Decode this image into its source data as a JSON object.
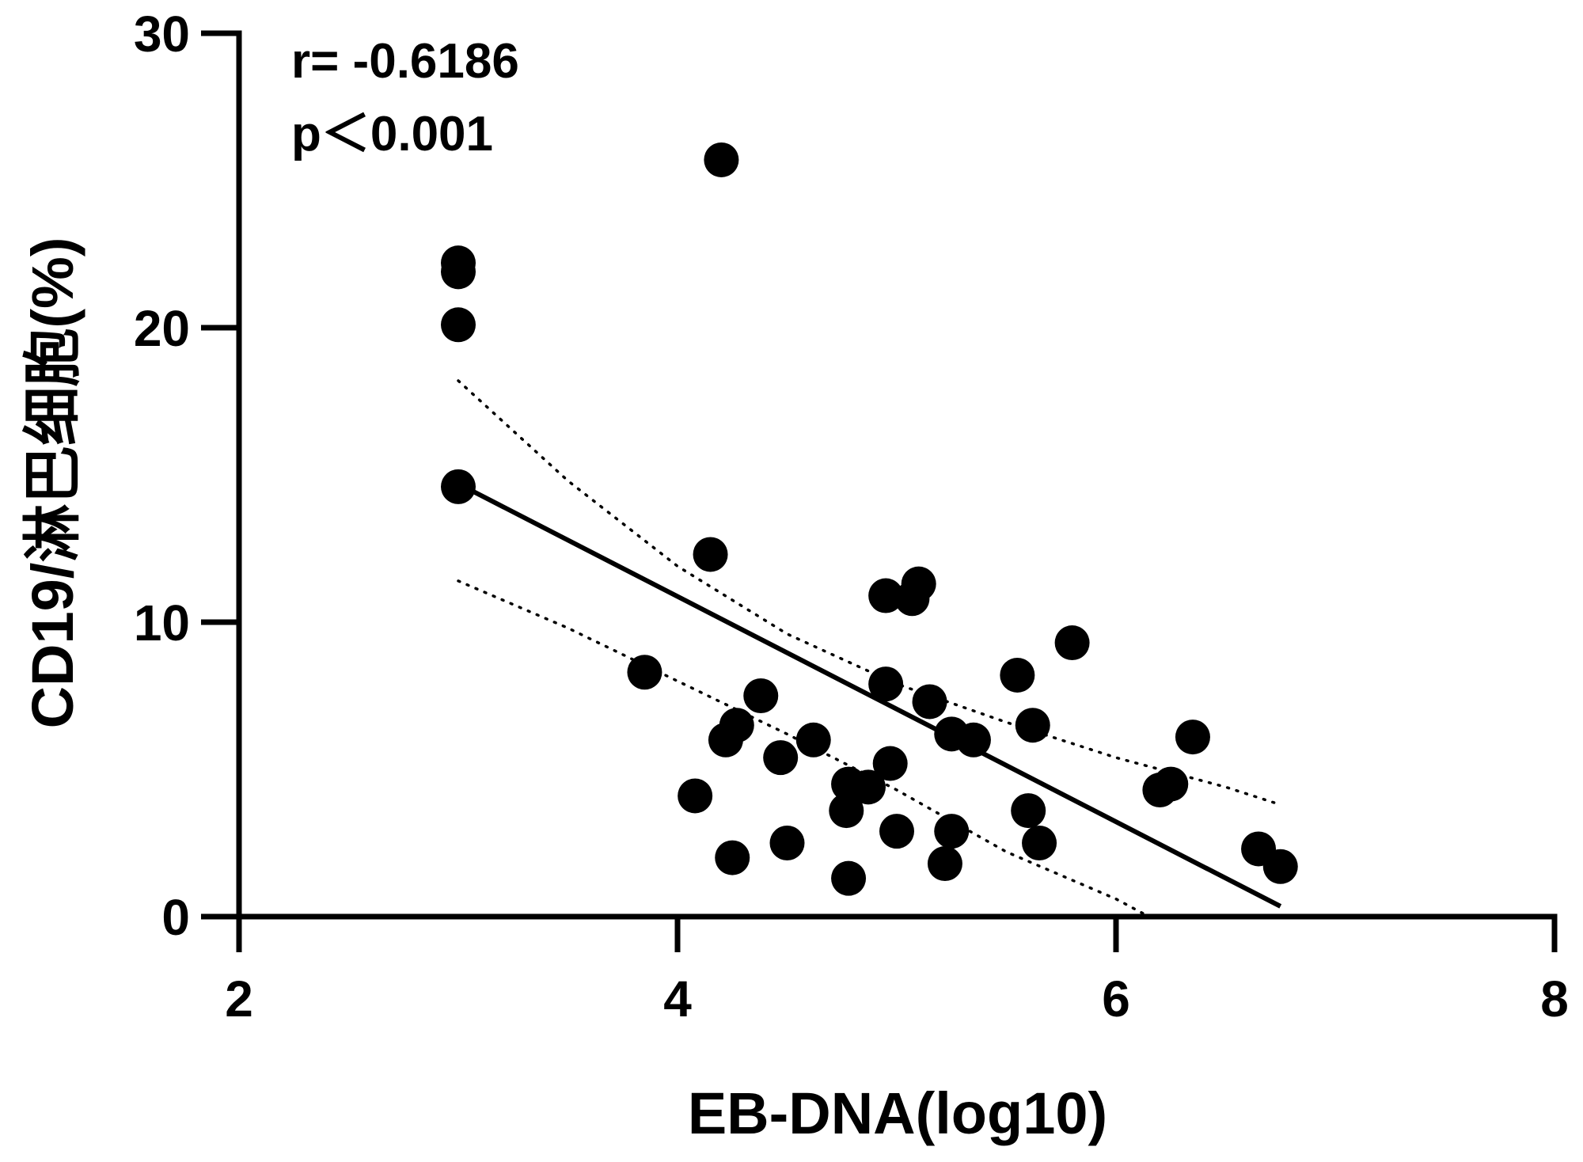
{
  "chart_data": {
    "type": "scatter",
    "title": "",
    "xlabel": "EB-DNA(log10)",
    "ylabel": "CD19/淋巴细胞(%)",
    "xlim": [
      2,
      8
    ],
    "ylim": [
      0,
      30
    ],
    "xticks": [
      2,
      4,
      6,
      8
    ],
    "yticks": [
      0,
      10,
      20,
      30
    ],
    "annotations": [
      "r= -0.6186",
      "p＜0.001"
    ],
    "points": [
      {
        "x": 4.2,
        "y": 25.7
      },
      {
        "x": 3.0,
        "y": 22.2
      },
      {
        "x": 3.0,
        "y": 21.9
      },
      {
        "x": 3.0,
        "y": 20.1
      },
      {
        "x": 3.0,
        "y": 14.6
      },
      {
        "x": 4.15,
        "y": 12.3
      },
      {
        "x": 5.1,
        "y": 11.3
      },
      {
        "x": 5.07,
        "y": 10.8
      },
      {
        "x": 4.95,
        "y": 10.9
      },
      {
        "x": 5.8,
        "y": 9.3
      },
      {
        "x": 3.85,
        "y": 8.3
      },
      {
        "x": 5.55,
        "y": 8.2
      },
      {
        "x": 4.95,
        "y": 7.9
      },
      {
        "x": 4.38,
        "y": 7.5
      },
      {
        "x": 5.15,
        "y": 7.3
      },
      {
        "x": 4.27,
        "y": 6.5
      },
      {
        "x": 5.62,
        "y": 6.5
      },
      {
        "x": 5.25,
        "y": 6.2
      },
      {
        "x": 4.22,
        "y": 6.0
      },
      {
        "x": 4.62,
        "y": 6.0
      },
      {
        "x": 5.35,
        "y": 6.0
      },
      {
        "x": 6.35,
        "y": 6.1
      },
      {
        "x": 4.47,
        "y": 5.4
      },
      {
        "x": 4.97,
        "y": 5.2
      },
      {
        "x": 4.78,
        "y": 4.5
      },
      {
        "x": 4.87,
        "y": 4.4
      },
      {
        "x": 6.25,
        "y": 4.5
      },
      {
        "x": 6.2,
        "y": 4.3
      },
      {
        "x": 4.08,
        "y": 4.1
      },
      {
        "x": 4.77,
        "y": 3.6
      },
      {
        "x": 5.6,
        "y": 3.6
      },
      {
        "x": 5.0,
        "y": 2.9
      },
      {
        "x": 5.25,
        "y": 2.9
      },
      {
        "x": 4.5,
        "y": 2.5
      },
      {
        "x": 5.65,
        "y": 2.5
      },
      {
        "x": 6.65,
        "y": 2.3
      },
      {
        "x": 4.25,
        "y": 2.0
      },
      {
        "x": 5.22,
        "y": 1.8
      },
      {
        "x": 6.75,
        "y": 1.7
      },
      {
        "x": 4.78,
        "y": 1.3
      }
    ],
    "fit_line": {
      "x": [
        3.0,
        6.75
      ],
      "y": [
        14.7,
        0.35
      ]
    },
    "ci_upper": {
      "x": [
        3.0,
        3.5,
        4.0,
        4.5,
        5.0,
        5.5,
        6.0,
        6.5,
        6.75
      ],
      "y": [
        18.2,
        14.8,
        11.9,
        9.6,
        7.9,
        6.6,
        5.4,
        4.4,
        3.8
      ]
    },
    "ci_lower": {
      "x": [
        3.0,
        3.5,
        4.0,
        4.5,
        5.0,
        5.5,
        6.0,
        6.15
      ],
      "y": [
        11.4,
        9.8,
        8.0,
        6.2,
        4.3,
        2.2,
        0.6,
        0.0
      ]
    }
  }
}
